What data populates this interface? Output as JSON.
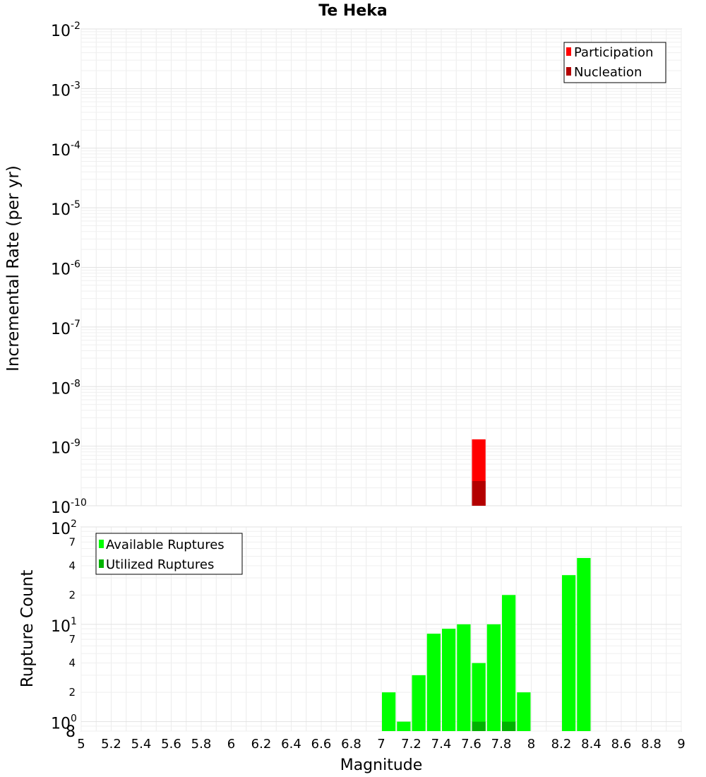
{
  "chart_data": [
    {
      "type": "bar",
      "title": "Te Heka",
      "xlabel": "",
      "ylabel": "Incremental Rate (per yr)",
      "yscale": "log",
      "ylim": [
        1e-10,
        0.01
      ],
      "xlim": [
        5,
        9
      ],
      "grid": true,
      "legend_position": "top-right",
      "series": [
        {
          "name": "Participation",
          "color": "#ff0000",
          "points": [
            {
              "x": 7.65,
              "y": 1.3e-09
            }
          ]
        },
        {
          "name": "Nucleation",
          "color": "#b30000",
          "points": [
            {
              "x": 7.65,
              "y": 2.6e-10
            }
          ]
        }
      ],
      "y_tick_labels": [
        {
          "base": "10",
          "exp": "-2"
        },
        {
          "base": "10",
          "exp": "-3"
        },
        {
          "base": "10",
          "exp": "-4"
        },
        {
          "base": "10",
          "exp": "-5"
        },
        {
          "base": "10",
          "exp": "-6"
        },
        {
          "base": "10",
          "exp": "-7"
        },
        {
          "base": "10",
          "exp": "-8"
        },
        {
          "base": "10",
          "exp": "-9"
        },
        {
          "base": "10",
          "exp": "-10"
        }
      ]
    },
    {
      "type": "bar",
      "title": "",
      "xlabel": "Magnitude",
      "ylabel": "Rupture Count",
      "yscale": "log",
      "ylim": [
        0.8,
        100
      ],
      "xlim": [
        5,
        9
      ],
      "grid": true,
      "legend_position": "top-left",
      "x_tick_labels": [
        "5",
        "5.2",
        "5.4",
        "5.6",
        "5.8",
        "6",
        "6.2",
        "6.4",
        "6.6",
        "6.8",
        "7",
        "7.2",
        "7.4",
        "7.6",
        "7.8",
        "8",
        "8.2",
        "8.4",
        "8.6",
        "8.8",
        "9"
      ],
      "series": [
        {
          "name": "Available Ruptures",
          "color": "#00ff00",
          "points": [
            {
              "x": 7.05,
              "y": 2
            },
            {
              "x": 7.15,
              "y": 1
            },
            {
              "x": 7.25,
              "y": 3
            },
            {
              "x": 7.35,
              "y": 8
            },
            {
              "x": 7.45,
              "y": 9
            },
            {
              "x": 7.55,
              "y": 10
            },
            {
              "x": 7.65,
              "y": 4
            },
            {
              "x": 7.75,
              "y": 10
            },
            {
              "x": 7.85,
              "y": 20
            },
            {
              "x": 7.95,
              "y": 2
            },
            {
              "x": 8.25,
              "y": 32
            },
            {
              "x": 8.35,
              "y": 48
            }
          ]
        },
        {
          "name": "Utilized Ruptures",
          "color": "#00b300",
          "points": [
            {
              "x": 7.65,
              "y": 1
            },
            {
              "x": 7.85,
              "y": 1
            }
          ]
        }
      ],
      "y_major_labels": [
        {
          "base": "10",
          "exp": "2"
        },
        {
          "base": "10",
          "exp": "1"
        },
        {
          "base": "10",
          "exp": "0"
        }
      ],
      "y_minor_labels": [
        "7",
        "4",
        "2",
        "7",
        "4",
        "2",
        "8"
      ]
    }
  ]
}
